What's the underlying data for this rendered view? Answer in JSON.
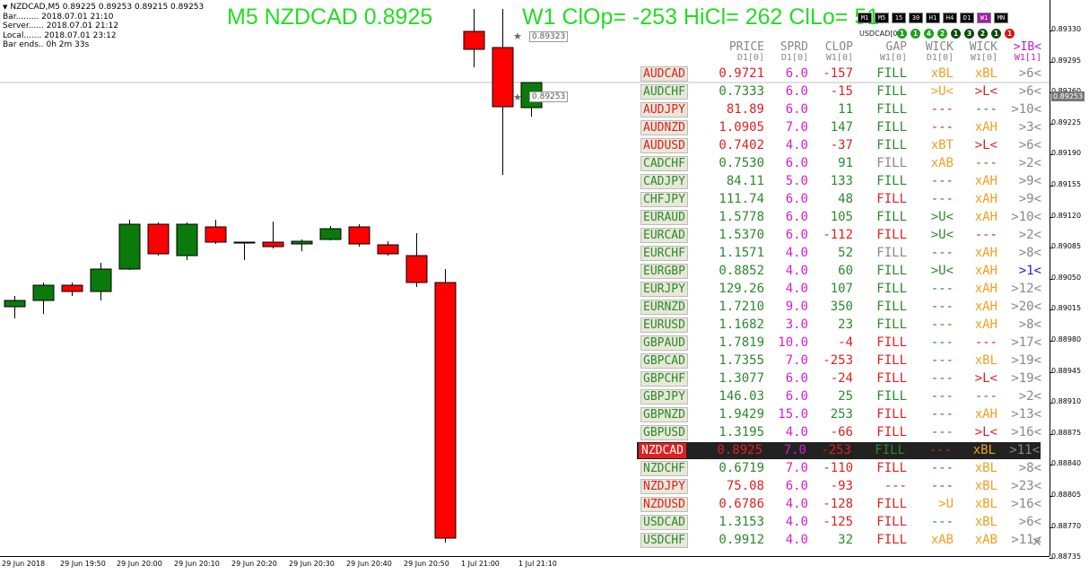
{
  "window": {
    "info_lines": [
      "NZDCAD,M5  0.89225 0.89253 0.89215 0.89253",
      "Bar......... 2018.07.01 21:10",
      "Server...... 2018.07.01 21:12",
      "Local....... 2018.07.01 23:12",
      "Bar ends.. 0h 2m 33s"
    ]
  },
  "title_left": "M5 NZDCAD 0.8925",
  "title_right": "W1 ClOp= -253 HiCl= 262 ClLo= 51",
  "timeframes": [
    "M1",
    "M5",
    "15",
    "30",
    "H1",
    "H4",
    "D1",
    "W1",
    "MN"
  ],
  "selected_timeframe": "W1",
  "usdcad_label": "USDCAD[0]",
  "dots": [
    {
      "label": "1",
      "color": "#1ca01c"
    },
    {
      "label": "1",
      "color": "#1ca01c"
    },
    {
      "label": "4",
      "color": "#1ca01c"
    },
    {
      "label": "2",
      "color": "#1ca01c"
    },
    {
      "label": "1",
      "color": "#0a4a0a"
    },
    {
      "label": "3",
      "color": "#0a4a0a"
    },
    {
      "label": "2",
      "color": "#0a4a0a"
    },
    {
      "label": "1",
      "color": "#0a4a0a"
    },
    {
      "label": "1",
      "color": "#e01010"
    }
  ],
  "headers": {
    "price": "PRICE",
    "price_sub": "D1[0]",
    "sprd": "SPRD",
    "sprd_sub": "D1[0]",
    "clop": "CLOP",
    "clop_sub": "W1[0]",
    "gap": "GAP",
    "gap_sub": "W1[0]",
    "wick1": "WICK",
    "wick1_sub": "D1[0]",
    "wick2": "WICK",
    "wick2_sub": "W1[0]",
    "ib": ">IB<",
    "ib_sub": "W1[1]"
  },
  "colors": {
    "green": "#2a8a2a",
    "red": "#e02020",
    "orange": "#f0a020",
    "magenta": "#d020d0",
    "gray": "#888888",
    "blue": "#2020e0"
  },
  "rows": [
    {
      "sym": "AUDCAD",
      "sc": "red",
      "price": "0.9721",
      "pc": "red",
      "sprd": "6.0",
      "clop": "-157",
      "cc": "red",
      "gap": "FILL",
      "gc": "green",
      "w1": "xBL",
      "w1c": "orange",
      "w2": "xBL",
      "w2c": "orange",
      "ib": ">6<"
    },
    {
      "sym": "AUDCHF",
      "sc": "green",
      "price": "0.7333",
      "pc": "green",
      "sprd": "6.0",
      "clop": "-15",
      "cc": "red",
      "gap": "FILL",
      "gc": "green",
      "w1": ">U<",
      "w1c": "orange",
      "w2": ">L<",
      "w2c": "red",
      "ib": ">6<"
    },
    {
      "sym": "AUDJPY",
      "sc": "red",
      "price": "81.89",
      "pc": "red",
      "sprd": "6.0",
      "clop": "11",
      "cc": "green",
      "gap": "FILL",
      "gc": "green",
      "w1": "---",
      "w1c": "red",
      "w2": "---",
      "w2c": "green",
      "ib": ">10<"
    },
    {
      "sym": "AUDNZD",
      "sc": "red",
      "price": "1.0905",
      "pc": "red",
      "sprd": "7.0",
      "clop": "147",
      "cc": "green",
      "gap": "FILL",
      "gc": "green",
      "w1": "---",
      "w1c": "red",
      "w2": "xAH",
      "w2c": "orange",
      "ib": ">3<"
    },
    {
      "sym": "AUDUSD",
      "sc": "red",
      "price": "0.7402",
      "pc": "red",
      "sprd": "4.0",
      "clop": "-37",
      "cc": "red",
      "gap": "FILL",
      "gc": "green",
      "w1": "xBT",
      "w1c": "orange",
      "w2": ">L<",
      "w2c": "red",
      "ib": ">6<"
    },
    {
      "sym": "CADCHF",
      "sc": "green",
      "price": "0.7530",
      "pc": "green",
      "sprd": "6.0",
      "clop": "91",
      "cc": "green",
      "gap": "FILL",
      "gc": "gray",
      "w1": "xAB",
      "w1c": "orange",
      "w2": "---",
      "w2c": "green",
      "ib": ">2<"
    },
    {
      "sym": "CADJPY",
      "sc": "green",
      "price": "84.11",
      "pc": "green",
      "sprd": "5.0",
      "clop": "133",
      "cc": "green",
      "gap": "FILL",
      "gc": "green",
      "w1": "---",
      "w1c": "green",
      "w2": "xAH",
      "w2c": "orange",
      "ib": ">9<"
    },
    {
      "sym": "CHFJPY",
      "sc": "green",
      "price": "111.74",
      "pc": "green",
      "sprd": "6.0",
      "clop": "48",
      "cc": "green",
      "gap": "FILL",
      "gc": "red",
      "w1": "---",
      "w1c": "green",
      "w2": "xAH",
      "w2c": "orange",
      "ib": ">9<"
    },
    {
      "sym": "EURAUD",
      "sc": "green",
      "price": "1.5778",
      "pc": "green",
      "sprd": "6.0",
      "clop": "105",
      "cc": "green",
      "gap": "FILL",
      "gc": "green",
      "w1": ">U<",
      "w1c": "green",
      "w2": "xAH",
      "w2c": "orange",
      "ib": ">10<"
    },
    {
      "sym": "EURCAD",
      "sc": "green",
      "price": "1.5370",
      "pc": "green",
      "sprd": "6.0",
      "clop": "-112",
      "cc": "red",
      "gap": "FILL",
      "gc": "red",
      "w1": ">U<",
      "w1c": "green",
      "w2": "---",
      "w2c": "red",
      "ib": ">2<"
    },
    {
      "sym": "EURCHF",
      "sc": "green",
      "price": "1.1571",
      "pc": "green",
      "sprd": "4.0",
      "clop": "52",
      "cc": "green",
      "gap": "FILL",
      "gc": "gray",
      "w1": "---",
      "w1c": "green",
      "w2": "xAH",
      "w2c": "orange",
      "ib": ">8<"
    },
    {
      "sym": "EURGBP",
      "sc": "green",
      "price": "0.8852",
      "pc": "green",
      "sprd": "4.0",
      "clop": "60",
      "cc": "green",
      "gap": "FILL",
      "gc": "green",
      "w1": ">U<",
      "w1c": "green",
      "w2": "xAH",
      "w2c": "orange",
      "ib": ">1<",
      "ibc": "blue"
    },
    {
      "sym": "EURJPY",
      "sc": "green",
      "price": "129.26",
      "pc": "green",
      "sprd": "4.0",
      "clop": "107",
      "cc": "green",
      "gap": "FILL",
      "gc": "green",
      "w1": "---",
      "w1c": "green",
      "w2": "xAH",
      "w2c": "orange",
      "ib": ">12<"
    },
    {
      "sym": "EURNZD",
      "sc": "green",
      "price": "1.7210",
      "pc": "green",
      "sprd": "9.0",
      "clop": "350",
      "cc": "green",
      "gap": "FILL",
      "gc": "green",
      "w1": "---",
      "w1c": "green",
      "w2": "xAH",
      "w2c": "orange",
      "ib": ">20<"
    },
    {
      "sym": "EURUSD",
      "sc": "green",
      "price": "1.1682",
      "pc": "green",
      "sprd": "3.0",
      "clop": "23",
      "cc": "green",
      "gap": "FILL",
      "gc": "green",
      "w1": "---",
      "w1c": "green",
      "w2": "xAH",
      "w2c": "orange",
      "ib": ">8<"
    },
    {
      "sym": "GBPAUD",
      "sc": "green",
      "price": "1.7819",
      "pc": "green",
      "sprd": "10.0",
      "clop": "-4",
      "cc": "red",
      "gap": "FILL",
      "gc": "red",
      "w1": "---",
      "w1c": "green",
      "w2": "---",
      "w2c": "red",
      "ib": ">17<"
    },
    {
      "sym": "GBPCAD",
      "sc": "green",
      "price": "1.7355",
      "pc": "green",
      "sprd": "7.0",
      "clop": "-253",
      "cc": "red",
      "gap": "FILL",
      "gc": "red",
      "w1": "---",
      "w1c": "green",
      "w2": "xBL",
      "w2c": "orange",
      "ib": ">19<"
    },
    {
      "sym": "GBPCHF",
      "sc": "green",
      "price": "1.3077",
      "pc": "green",
      "sprd": "6.0",
      "clop": "-24",
      "cc": "red",
      "gap": "FILL",
      "gc": "red",
      "w1": "---",
      "w1c": "green",
      "w2": ">L<",
      "w2c": "red",
      "ib": ">19<"
    },
    {
      "sym": "GBPJPY",
      "sc": "green",
      "price": "146.03",
      "pc": "green",
      "sprd": "6.0",
      "clop": "25",
      "cc": "green",
      "gap": "FILL",
      "gc": "green",
      "w1": "---",
      "w1c": "green",
      "w2": "---",
      "w2c": "green",
      "ib": ">2<"
    },
    {
      "sym": "GBPNZD",
      "sc": "green",
      "price": "1.9429",
      "pc": "green",
      "sprd": "15.0",
      "clop": "253",
      "cc": "green",
      "gap": "FILL",
      "gc": "red",
      "w1": "---",
      "w1c": "green",
      "w2": "xAH",
      "w2c": "orange",
      "ib": ">13<"
    },
    {
      "sym": "GBPUSD",
      "sc": "green",
      "price": "1.3195",
      "pc": "green",
      "sprd": "4.0",
      "clop": "-66",
      "cc": "red",
      "gap": "FILL",
      "gc": "red",
      "w1": "---",
      "w1c": "green",
      "w2": ">L<",
      "w2c": "red",
      "ib": ">16<"
    },
    {
      "sym": "NZDCAD",
      "sc": "sel",
      "price": "0.8925",
      "pc": "red",
      "sprd": "7.0",
      "clop": "-253",
      "cc": "red",
      "gap": "FILL",
      "gc": "green",
      "w1": "---",
      "w1c": "red",
      "w2": "xBL",
      "w2c": "orange",
      "ib": ">11<",
      "selected": true
    },
    {
      "sym": "NZDCHF",
      "sc": "green",
      "price": "0.6719",
      "pc": "green",
      "sprd": "7.0",
      "clop": "-110",
      "cc": "red",
      "gap": "FILL",
      "gc": "red",
      "w1": "---",
      "w1c": "green",
      "w2": "xBL",
      "w2c": "orange",
      "ib": ">8<"
    },
    {
      "sym": "NZDJPY",
      "sc": "red",
      "price": "75.08",
      "pc": "red",
      "sprd": "6.0",
      "clop": "-93",
      "cc": "red",
      "gap": "---",
      "gc": "red",
      "w1": "---",
      "w1c": "red",
      "w2": "xBL",
      "w2c": "orange",
      "ib": ">23<"
    },
    {
      "sym": "NZDUSD",
      "sc": "red",
      "price": "0.6786",
      "pc": "red",
      "sprd": "4.0",
      "clop": "-128",
      "cc": "red",
      "gap": "FILL",
      "gc": "red",
      "w1": ">U",
      "w1c": "orange",
      "w2": "xBL",
      "w2c": "orange",
      "ib": ">16<"
    },
    {
      "sym": "USDCAD",
      "sc": "green",
      "price": "1.3153",
      "pc": "green",
      "sprd": "4.0",
      "clop": "-125",
      "cc": "red",
      "gap": "FILL",
      "gc": "red",
      "w1": "---",
      "w1c": "green",
      "w2": "xBL",
      "w2c": "orange",
      "ib": ">6<"
    },
    {
      "sym": "USDCHF",
      "sc": "green",
      "price": "0.9912",
      "pc": "green",
      "sprd": "4.0",
      "clop": "32",
      "cc": "green",
      "gap": "FILL",
      "gc": "red",
      "w1": "xAB",
      "w1c": "orange",
      "w2": "xAB",
      "w2c": "orange",
      "ib": ">11<"
    }
  ],
  "y_axis": [
    "0.89330",
    "0.89295",
    "0.89260",
    "0.89225",
    "0.89190",
    "0.89155",
    "0.89120",
    "0.89085",
    "0.89050",
    "0.89015",
    "0.88980",
    "0.88945",
    "0.88910",
    "0.88875",
    "0.88840",
    "0.88805",
    "0.88770",
    "0.88735"
  ],
  "current_price": "0.89253",
  "level_high": "0.89323",
  "level_cur": "0.89253",
  "x_axis": [
    "29 Jun 2018",
    "29 Jun 19:50",
    "29 Jun 20:00",
    "29 Jun 20:10",
    "29 Jun 20:20",
    "29 Jun 20:30",
    "29 Jun 20:40",
    "29 Jun 20:50",
    "1 Jul 21:00",
    "1 Jul 21:10"
  ],
  "chart_data": {
    "type": "candlestick",
    "symbol": "NZDCAD",
    "timeframe": "M5",
    "ylim": [
      0.88725,
      0.89345
    ],
    "candles": [
      {
        "o": 0.89003,
        "h": 0.89015,
        "l": 0.8899,
        "c": 0.8901
      },
      {
        "o": 0.8901,
        "h": 0.8903,
        "l": 0.88995,
        "c": 0.89027
      },
      {
        "o": 0.89027,
        "h": 0.8903,
        "l": 0.89015,
        "c": 0.8902
      },
      {
        "o": 0.8902,
        "h": 0.89052,
        "l": 0.8901,
        "c": 0.89045
      },
      {
        "o": 0.89045,
        "h": 0.891,
        "l": 0.89044,
        "c": 0.89095
      },
      {
        "o": 0.89095,
        "h": 0.89097,
        "l": 0.8906,
        "c": 0.89062
      },
      {
        "o": 0.8906,
        "h": 0.89097,
        "l": 0.89055,
        "c": 0.89095
      },
      {
        "o": 0.89092,
        "h": 0.891,
        "l": 0.89073,
        "c": 0.89075
      },
      {
        "o": 0.89075,
        "h": 0.89075,
        "l": 0.89055,
        "c": 0.89075
      },
      {
        "o": 0.89075,
        "h": 0.89098,
        "l": 0.89068,
        "c": 0.8907
      },
      {
        "o": 0.89073,
        "h": 0.89078,
        "l": 0.89065,
        "c": 0.89076
      },
      {
        "o": 0.89078,
        "h": 0.89093,
        "l": 0.89077,
        "c": 0.8909
      },
      {
        "o": 0.89092,
        "h": 0.89095,
        "l": 0.8907,
        "c": 0.89073
      },
      {
        "o": 0.89072,
        "h": 0.89076,
        "l": 0.8906,
        "c": 0.89062
      },
      {
        "o": 0.8906,
        "h": 0.89085,
        "l": 0.89025,
        "c": 0.8903
      },
      {
        "o": 0.8903,
        "h": 0.89045,
        "l": 0.8874,
        "c": 0.88745
      },
      {
        "o": 0.8931,
        "h": 0.89335,
        "l": 0.8927,
        "c": 0.8929
      },
      {
        "o": 0.89292,
        "h": 0.89335,
        "l": 0.8915,
        "c": 0.89226
      },
      {
        "o": 0.89225,
        "h": 0.89253,
        "l": 0.89215,
        "c": 0.89253
      }
    ]
  }
}
